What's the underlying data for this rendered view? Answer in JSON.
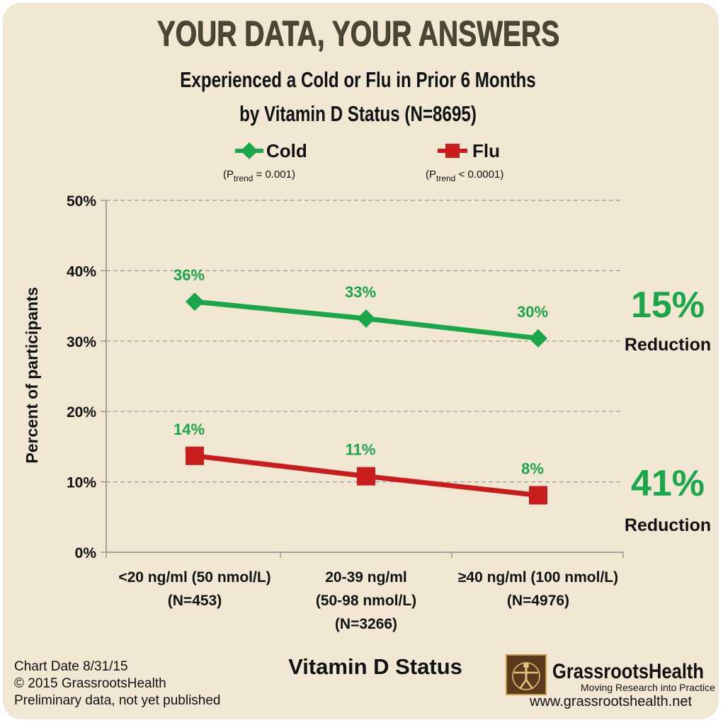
{
  "header": {
    "title": "YOUR DATA, YOUR ANSWERS",
    "subtitle_line1": "Experienced a Cold or Flu in Prior 6 Months",
    "subtitle_line2": "by Vitamin D Status (N=8695)"
  },
  "legend": {
    "cold_label": "Cold",
    "cold_ptrend_prefix": "(P",
    "cold_ptrend_sub": "trend",
    "cold_ptrend_value": " = 0.001)",
    "flu_label": "Flu",
    "flu_ptrend_prefix": "(P",
    "flu_ptrend_sub": "trend",
    "flu_ptrend_value": " < 0.0001)"
  },
  "colors": {
    "cold": "#1aa64a",
    "flu": "#c91d1d",
    "grid": "#9a9a9a",
    "background": "#f1e7d3"
  },
  "chart_data": {
    "type": "line",
    "ylabel": "Percent of participants",
    "xlabel": "Vitamin D Status",
    "ylim": [
      0,
      50
    ],
    "yticks": [
      "0%",
      "10%",
      "20%",
      "30%",
      "40%",
      "50%"
    ],
    "grid": true,
    "legend_position": "top",
    "categories": [
      [
        "<20 ng/ml (50 nmol/L)",
        "(N=453)"
      ],
      [
        "20-39 ng/ml",
        "(50-98 nmol/L)",
        "(N=3266)"
      ],
      [
        "≥40 ng/ml (100 nmol/L)",
        "(N=4976)"
      ]
    ],
    "series": [
      {
        "name": "Cold",
        "values": [
          35.6,
          33.2,
          30.4
        ],
        "labels": [
          "36%",
          "33%",
          "30%"
        ],
        "marker": "diamond",
        "color": "#1aa64a"
      },
      {
        "name": "Flu",
        "values": [
          13.7,
          10.8,
          8.1
        ],
        "labels": [
          "14%",
          "11%",
          "8%"
        ],
        "marker": "square",
        "color": "#c91d1d"
      }
    ],
    "annotations": [
      {
        "series": "Cold",
        "value": "15%",
        "text": "Reduction"
      },
      {
        "series": "Flu",
        "value": "41%",
        "text": "Reduction"
      }
    ]
  },
  "footer": {
    "chart_date": "Chart Date 8/31/15",
    "copyright": "© 2015 GrassrootsHealth",
    "note": "Preliminary data, not yet published"
  },
  "brand": {
    "name": "GrassrootsHealth",
    "tagline": "Moving Research into Practice",
    "url": "www.grassrootshealth.net",
    "logo_icon": "vitruvian-man-logo"
  }
}
